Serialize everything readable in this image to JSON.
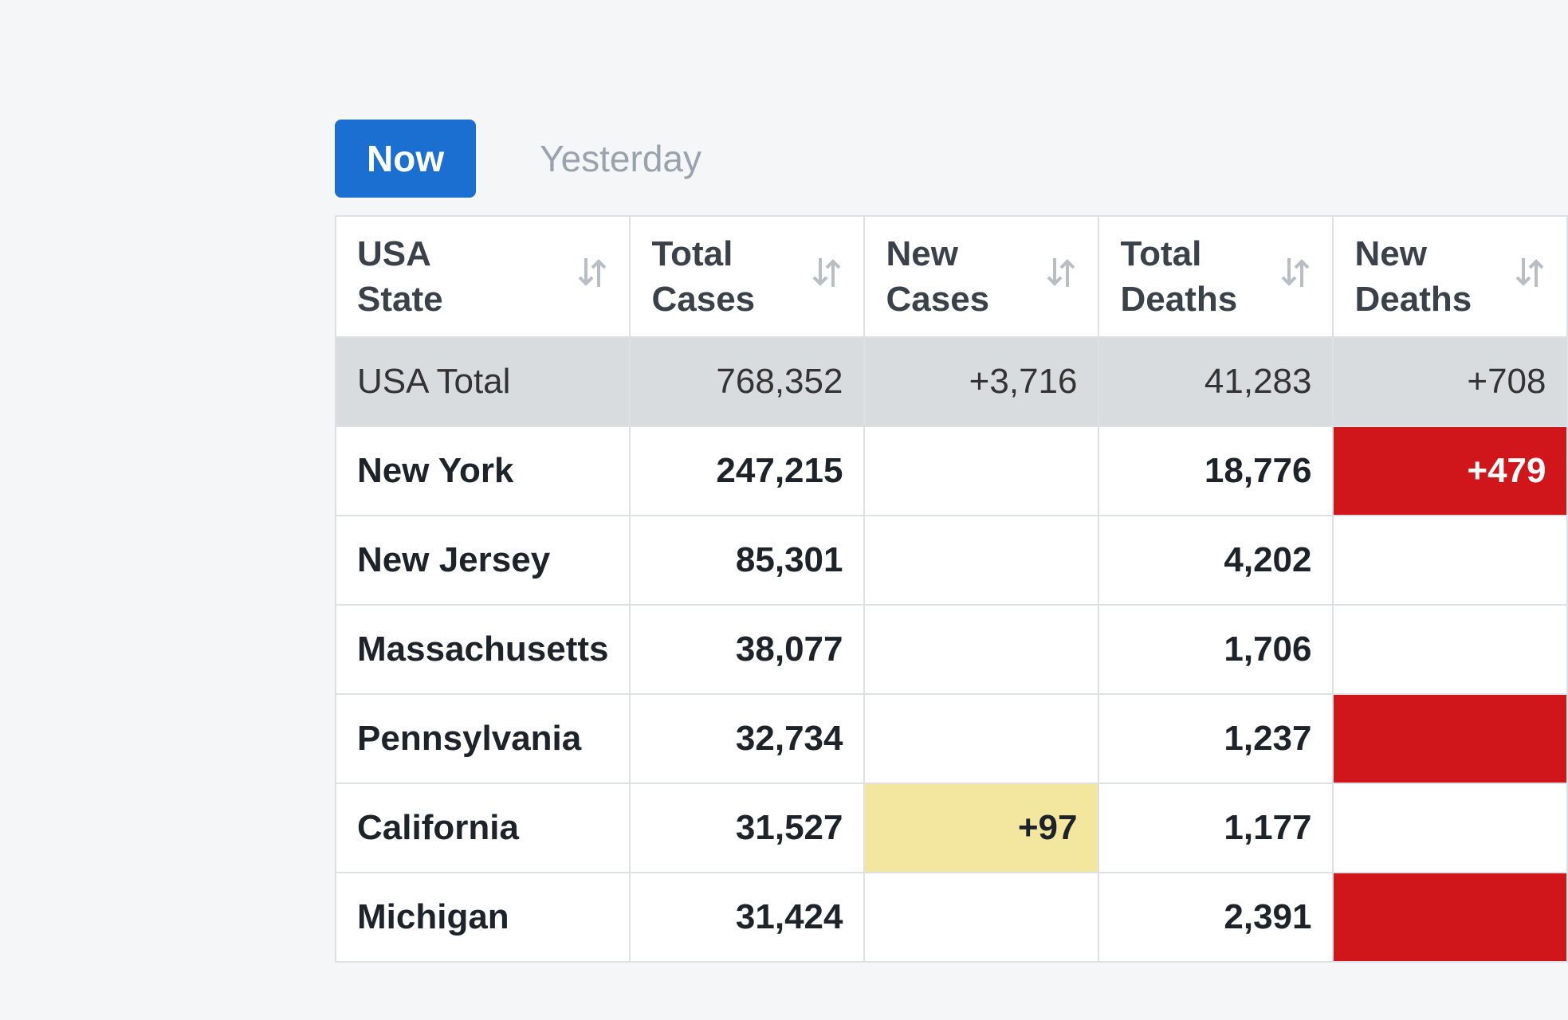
{
  "tabs": [
    "Now",
    "Yesterday"
  ],
  "active_tab": 0,
  "table": {
    "headers": [
      "USA State",
      "Total Cases",
      "New Cases",
      "Total Deaths",
      "New Deaths"
    ],
    "total_row": 0,
    "rows": [
      [
        "USA Total",
        "768,352",
        "+3,716",
        "41,283",
        "+708"
      ],
      [
        "New York",
        "247,215",
        null,
        "18,776",
        "+479"
      ],
      [
        "New Jersey",
        "85,301",
        null,
        "4,202",
        null
      ],
      [
        "Massachusetts",
        "38,077",
        null,
        "1,706",
        null
      ],
      [
        "Pennsylvania",
        "32,734",
        null,
        "1,237",
        null
      ],
      [
        "California",
        "31,527",
        "+97",
        "1,177",
        null
      ],
      [
        "Michigan",
        "31,424",
        null,
        "2,391",
        null
      ]
    ],
    "highlights": [
      {
        "row": 1,
        "col": 4,
        "color": "#d0161b"
      },
      {
        "row": 4,
        "col": 4,
        "color": "#d0161b"
      },
      {
        "row": 5,
        "col": 2,
        "color": "#f3e7a0"
      },
      {
        "row": 6,
        "col": 4,
        "color": "#d0161b"
      }
    ]
  }
}
